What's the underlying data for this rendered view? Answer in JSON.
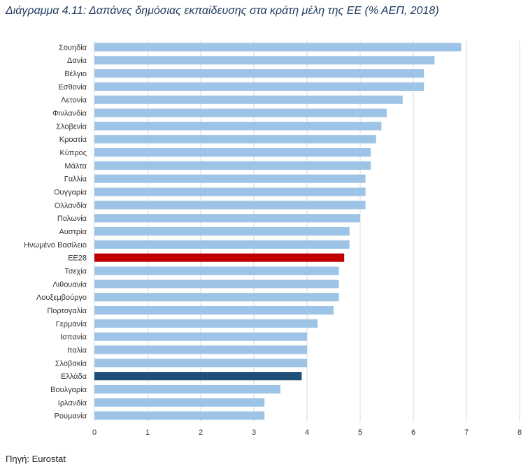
{
  "title": "Διάγραμμα 4.11: Δαπάνες δημόσιας εκπαίδευσης στα κράτη μέλη της ΕΕ (% ΑΕΠ, 2018)",
  "source": "Πηγή: Eurostat",
  "colors": {
    "default": "#9dc3e6",
    "eu28": "#c00000",
    "greece": "#1f4e79",
    "grid": "#d9d9d9"
  },
  "chart_data": {
    "type": "bar",
    "orientation": "horizontal",
    "title": "Διάγραμμα 4.11: Δαπάνες δημόσιας εκπαίδευσης στα κράτη μέλη της ΕΕ (% ΑΕΠ, 2018)",
    "xlabel": "",
    "ylabel": "",
    "xlim": [
      0,
      8
    ],
    "xticks": [
      0,
      1,
      2,
      3,
      4,
      5,
      6,
      7,
      8
    ],
    "grid": true,
    "categories": [
      "Σουηδία",
      "Δανία",
      "Βέλγιο",
      "Εσθονία",
      "Λετονία",
      "Φινλανδία",
      "Σλοβενία",
      "Κροατία",
      "Κύπρος",
      "Μάλτα",
      "Γαλλία",
      "Ουγγαρία",
      "Ολλανδία",
      "Πολωνία",
      "Αυστρία",
      "Ηνωμένο Βασίλειο",
      "ΕΕ28",
      "Τσεχία",
      "Λιθουανία",
      "Λουξεμβούργο",
      "Πορτογαλία",
      "Γερμανία",
      "Ισπανία",
      "Ιταλία",
      "Σλοβακία",
      "Ελλάδα",
      "Βουλγαρία",
      "Ιρλανδία",
      "Ρουμανία"
    ],
    "values": [
      6.9,
      6.4,
      6.2,
      6.2,
      5.8,
      5.5,
      5.4,
      5.3,
      5.2,
      5.2,
      5.1,
      5.1,
      5.1,
      5.0,
      4.8,
      4.8,
      4.7,
      4.6,
      4.6,
      4.6,
      4.5,
      4.2,
      4.0,
      4.0,
      4.0,
      3.9,
      3.5,
      3.2,
      3.2
    ],
    "highlight": {
      "ΕΕ28": "eu28",
      "Ελλάδα": "greece"
    }
  }
}
